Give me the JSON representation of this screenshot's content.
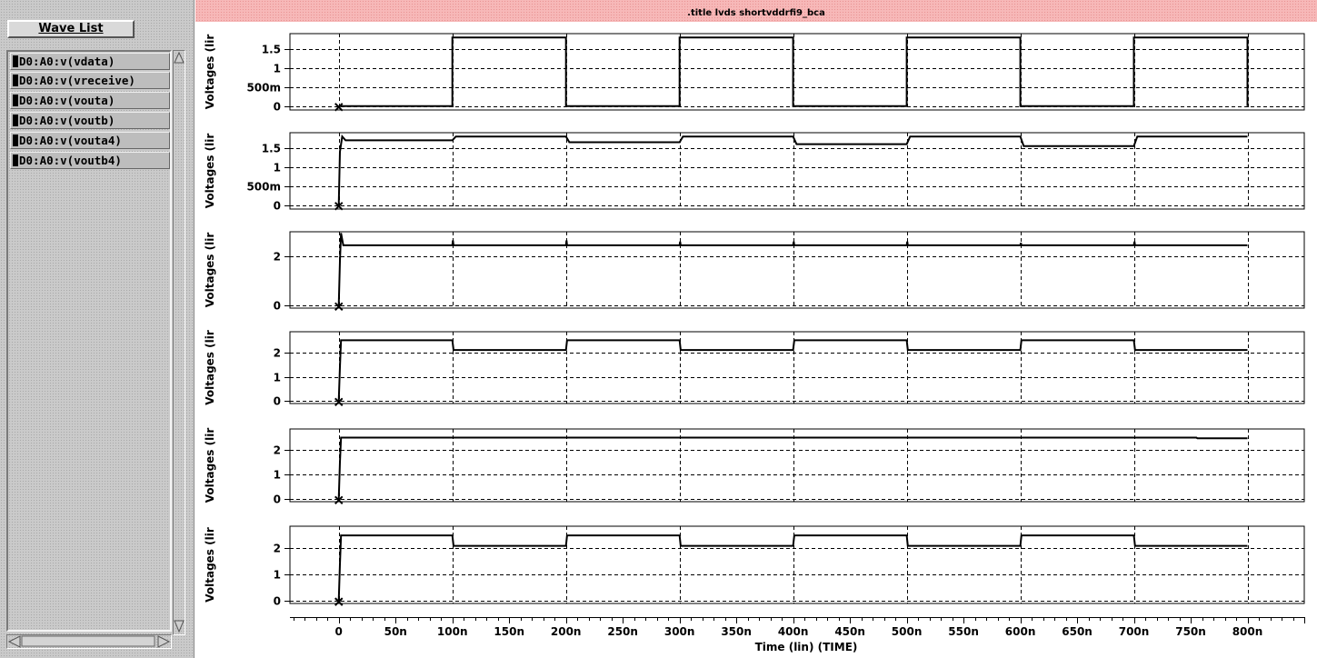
{
  "window": {
    "title": ".title lvds shortvddrfi9_bca"
  },
  "wave_list": {
    "button_label": "Wave List",
    "items": [
      "D0:A0:v(vdata)",
      "D0:A0:v(vreceive)",
      "D0:A0:v(vouta)",
      "D0:A0:v(voutb)",
      "D0:A0:v(vouta4)",
      "D0:A0:v(voutb4)"
    ]
  },
  "x_axis": {
    "label": "Time (lin) (TIME)",
    "ticks": [
      "0",
      "50n",
      "100n",
      "150n",
      "200n",
      "250n",
      "300n",
      "350n",
      "400n",
      "450n",
      "500n",
      "550n",
      "600n",
      "650n",
      "700n",
      "750n",
      "800n"
    ],
    "range_ns": [
      -43,
      850
    ]
  },
  "chart_data": [
    {
      "type": "line",
      "ylabel": "Voltages (lir",
      "ylim": [
        -0.1,
        1.9
      ],
      "yticks": [
        {
          "v": 0,
          "t": "0"
        },
        {
          "v": 0.5,
          "t": "500m"
        },
        {
          "v": 1.0,
          "t": "1"
        },
        {
          "v": 1.5,
          "t": "1.5"
        }
      ],
      "points": [
        [
          0,
          0
        ],
        [
          100,
          0
        ],
        [
          100,
          1.8
        ],
        [
          200,
          1.8
        ],
        [
          200,
          0
        ],
        [
          300,
          0
        ],
        [
          300,
          1.8
        ],
        [
          400,
          1.8
        ],
        [
          400,
          0
        ],
        [
          500,
          0
        ],
        [
          500,
          1.8
        ],
        [
          600,
          1.8
        ],
        [
          600,
          0
        ],
        [
          700,
          0
        ],
        [
          700,
          1.8
        ],
        [
          800,
          1.8
        ],
        [
          800,
          0
        ]
      ]
    },
    {
      "type": "line",
      "ylabel": "Voltages (lir",
      "ylim": [
        -0.1,
        1.9
      ],
      "yticks": [
        {
          "v": 0,
          "t": "0"
        },
        {
          "v": 0.5,
          "t": "500m"
        },
        {
          "v": 1.0,
          "t": "1"
        },
        {
          "v": 1.5,
          "t": "1.5"
        }
      ],
      "points": [
        [
          0,
          0
        ],
        [
          1,
          1.4
        ],
        [
          3,
          1.8
        ],
        [
          6,
          1.7
        ],
        [
          100,
          1.7
        ],
        [
          103,
          1.8
        ],
        [
          200,
          1.8
        ],
        [
          203,
          1.65
        ],
        [
          300,
          1.65
        ],
        [
          303,
          1.8
        ],
        [
          400,
          1.8
        ],
        [
          403,
          1.6
        ],
        [
          500,
          1.6
        ],
        [
          503,
          1.8
        ],
        [
          600,
          1.8
        ],
        [
          603,
          1.55
        ],
        [
          700,
          1.55
        ],
        [
          703,
          1.8
        ],
        [
          800,
          1.8
        ]
      ]
    },
    {
      "type": "line",
      "ylabel": "Voltages (lir",
      "ylim": [
        -0.1,
        3.0
      ],
      "yticks": [
        {
          "v": 0,
          "t": "0"
        },
        {
          "v": 2,
          "t": "2"
        }
      ],
      "points": [
        [
          0,
          0
        ],
        [
          1,
          1.8
        ],
        [
          2,
          2.95
        ],
        [
          4,
          2.45
        ],
        [
          100,
          2.45
        ],
        [
          100.5,
          2.65
        ],
        [
          101,
          2.45
        ],
        [
          200,
          2.45
        ],
        [
          200.5,
          2.65
        ],
        [
          201,
          2.45
        ],
        [
          300,
          2.45
        ],
        [
          300.5,
          2.6
        ],
        [
          301,
          2.45
        ],
        [
          400,
          2.45
        ],
        [
          400.5,
          2.6
        ],
        [
          401,
          2.45
        ],
        [
          500,
          2.45
        ],
        [
          500.5,
          2.6
        ],
        [
          501,
          2.45
        ],
        [
          600,
          2.45
        ],
        [
          600.5,
          2.55
        ],
        [
          601,
          2.45
        ],
        [
          700,
          2.45
        ],
        [
          700.5,
          2.6
        ],
        [
          701,
          2.45
        ],
        [
          800,
          2.45
        ]
      ]
    },
    {
      "type": "line",
      "ylabel": "Voltages (lir",
      "ylim": [
        -0.1,
        2.85
      ],
      "yticks": [
        {
          "v": 0,
          "t": "0"
        },
        {
          "v": 1,
          "t": "1"
        },
        {
          "v": 2,
          "t": "2"
        }
      ],
      "points": [
        [
          0,
          0
        ],
        [
          1,
          1.4
        ],
        [
          2,
          2.5
        ],
        [
          100,
          2.5
        ],
        [
          101,
          2.1
        ],
        [
          200,
          2.1
        ],
        [
          201,
          2.5
        ],
        [
          300,
          2.5
        ],
        [
          301,
          2.1
        ],
        [
          400,
          2.1
        ],
        [
          401,
          2.5
        ],
        [
          500,
          2.5
        ],
        [
          501,
          2.1
        ],
        [
          600,
          2.1
        ],
        [
          601,
          2.5
        ],
        [
          700,
          2.5
        ],
        [
          701,
          2.1
        ],
        [
          800,
          2.1
        ]
      ]
    },
    {
      "type": "line",
      "ylabel": "Voltages (lir",
      "ylim": [
        -0.1,
        2.85
      ],
      "yticks": [
        {
          "v": 0,
          "t": "0"
        },
        {
          "v": 1,
          "t": "1"
        },
        {
          "v": 2,
          "t": "2"
        }
      ],
      "points": [
        [
          0,
          0
        ],
        [
          1,
          1.5
        ],
        [
          2,
          2.5
        ],
        [
          755,
          2.5
        ],
        [
          756,
          2.47
        ],
        [
          800,
          2.47
        ]
      ]
    },
    {
      "type": "line",
      "ylabel": "Voltages (lir",
      "ylim": [
        -0.1,
        2.85
      ],
      "yticks": [
        {
          "v": 0,
          "t": "0"
        },
        {
          "v": 1,
          "t": "1"
        },
        {
          "v": 2,
          "t": "2"
        }
      ],
      "points": [
        [
          0,
          0
        ],
        [
          1,
          1.4
        ],
        [
          2,
          2.5
        ],
        [
          100,
          2.5
        ],
        [
          101,
          2.1
        ],
        [
          200,
          2.1
        ],
        [
          201,
          2.5
        ],
        [
          300,
          2.5
        ],
        [
          301,
          2.1
        ],
        [
          400,
          2.1
        ],
        [
          401,
          2.5
        ],
        [
          500,
          2.5
        ],
        [
          501,
          2.1
        ],
        [
          600,
          2.1
        ],
        [
          601,
          2.5
        ],
        [
          700,
          2.5
        ],
        [
          701,
          2.1
        ],
        [
          800,
          2.1
        ]
      ]
    }
  ]
}
